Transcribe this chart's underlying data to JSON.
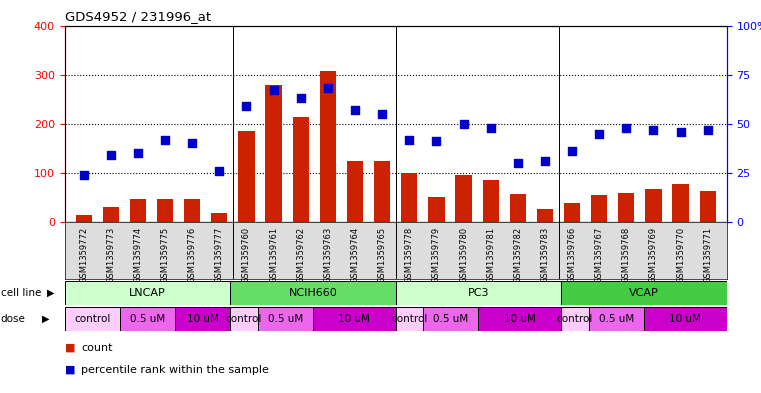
{
  "title": "GDS4952 / 231996_at",
  "samples": [
    "GSM1359772",
    "GSM1359773",
    "GSM1359774",
    "GSM1359775",
    "GSM1359776",
    "GSM1359777",
    "GSM1359760",
    "GSM1359761",
    "GSM1359762",
    "GSM1359763",
    "GSM1359764",
    "GSM1359765",
    "GSM1359778",
    "GSM1359779",
    "GSM1359780",
    "GSM1359781",
    "GSM1359782",
    "GSM1359783",
    "GSM1359766",
    "GSM1359767",
    "GSM1359768",
    "GSM1359769",
    "GSM1359770",
    "GSM1359771"
  ],
  "counts": [
    15,
    30,
    47,
    47,
    47,
    18,
    185,
    278,
    213,
    308,
    125,
    125,
    100,
    50,
    95,
    85,
    57,
    27,
    38,
    55,
    60,
    68,
    78,
    63
  ],
  "percentiles": [
    24,
    34,
    35,
    42,
    40,
    26,
    59,
    67,
    63,
    68,
    57,
    55,
    42,
    41,
    50,
    48,
    30,
    31,
    36,
    45,
    48,
    47,
    46,
    47
  ],
  "cell_lines": [
    {
      "label": "LNCAP",
      "start": 0,
      "end": 6,
      "color": "#ccffcc"
    },
    {
      "label": "NCIH660",
      "start": 6,
      "end": 12,
      "color": "#66dd66"
    },
    {
      "label": "PC3",
      "start": 12,
      "end": 18,
      "color": "#ccffcc"
    },
    {
      "label": "VCAP",
      "start": 18,
      "end": 24,
      "color": "#44cc44"
    }
  ],
  "dose_groups": [
    {
      "label": "control",
      "start": 0,
      "end": 2,
      "color": "#ffccff"
    },
    {
      "label": "0.5 uM",
      "start": 2,
      "end": 4,
      "color": "#ee66ee"
    },
    {
      "label": "10 uM",
      "start": 4,
      "end": 6,
      "color": "#cc00cc"
    },
    {
      "label": "control",
      "start": 6,
      "end": 7,
      "color": "#ffccff"
    },
    {
      "label": "0.5 uM",
      "start": 7,
      "end": 9,
      "color": "#ee66ee"
    },
    {
      "label": "10 uM",
      "start": 9,
      "end": 12,
      "color": "#cc00cc"
    },
    {
      "label": "control",
      "start": 12,
      "end": 13,
      "color": "#ffccff"
    },
    {
      "label": "0.5 uM",
      "start": 13,
      "end": 15,
      "color": "#ee66ee"
    },
    {
      "label": "10 uM",
      "start": 15,
      "end": 18,
      "color": "#cc00cc"
    },
    {
      "label": "control",
      "start": 18,
      "end": 19,
      "color": "#ffccff"
    },
    {
      "label": "0.5 uM",
      "start": 19,
      "end": 21,
      "color": "#ee66ee"
    },
    {
      "label": "10 uM",
      "start": 21,
      "end": 24,
      "color": "#cc00cc"
    }
  ],
  "bar_color": "#cc2200",
  "dot_color": "#0000cc",
  "left_ylim": [
    0,
    400
  ],
  "right_ylim": [
    0,
    100
  ],
  "left_yticks": [
    0,
    100,
    200,
    300,
    400
  ],
  "right_yticks": [
    0,
    25,
    50,
    75,
    100
  ],
  "right_yticklabels": [
    "0",
    "25",
    "50",
    "75",
    "100%"
  ],
  "plot_bg": "#ffffff",
  "fig_bg": "#ffffff",
  "xtick_bg": "#dddddd"
}
